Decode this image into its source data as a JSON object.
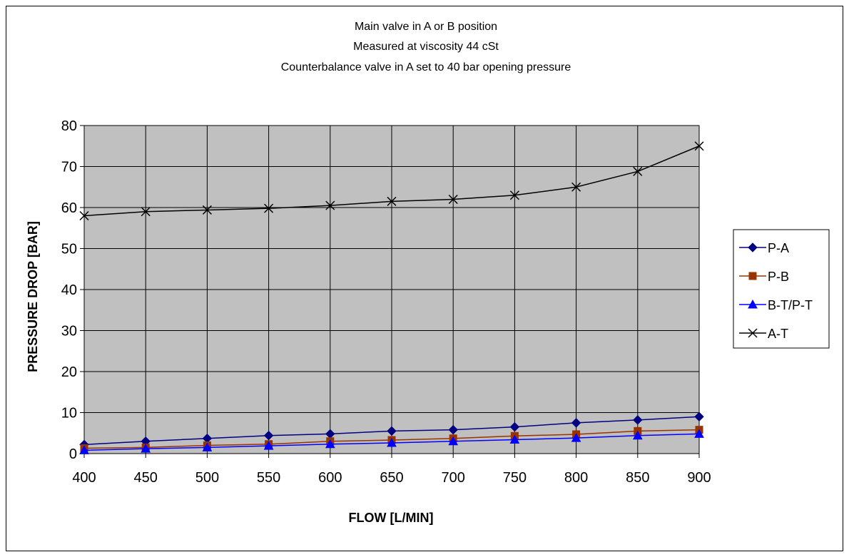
{
  "chart_data": {
    "type": "line",
    "title_lines": [
      "Main valve in A or B position",
      "Measured at viscosity 44 cSt",
      "Counterbalance valve in A set to 40 bar opening pressure"
    ],
    "xlabel": "FLOW [L/MIN]",
    "ylabel": "PRESSURE DROP [BAR]",
    "x": [
      400,
      450,
      500,
      550,
      600,
      650,
      700,
      750,
      800,
      850,
      900
    ],
    "xlim": [
      400,
      900
    ],
    "ylim": [
      0,
      80
    ],
    "yticks": [
      0,
      10,
      20,
      30,
      40,
      50,
      60,
      70,
      80
    ],
    "grid": true,
    "plot_background": "#c0c0c0",
    "legend_position": "right",
    "series": [
      {
        "name": "P-A",
        "color": "#000080",
        "marker": "diamond",
        "values": [
          2.2,
          3.0,
          3.7,
          4.4,
          4.8,
          5.5,
          5.8,
          6.5,
          7.5,
          8.2,
          9.0
        ]
      },
      {
        "name": "P-B",
        "color": "#993300",
        "marker": "square",
        "values": [
          1.3,
          1.5,
          2.0,
          2.3,
          3.0,
          3.3,
          3.7,
          4.3,
          4.7,
          5.5,
          5.8
        ]
      },
      {
        "name": "B-T/P-T",
        "color": "#0000ff",
        "marker": "triangle",
        "values": [
          0.8,
          1.2,
          1.5,
          1.9,
          2.3,
          2.6,
          3.0,
          3.4,
          3.8,
          4.4,
          4.8
        ]
      },
      {
        "name": "A-T",
        "color": "#000000",
        "marker": "x",
        "values": [
          58.0,
          59.0,
          59.4,
          59.8,
          60.5,
          61.5,
          62.0,
          63.0,
          65.0,
          68.8,
          75.0
        ]
      }
    ]
  }
}
